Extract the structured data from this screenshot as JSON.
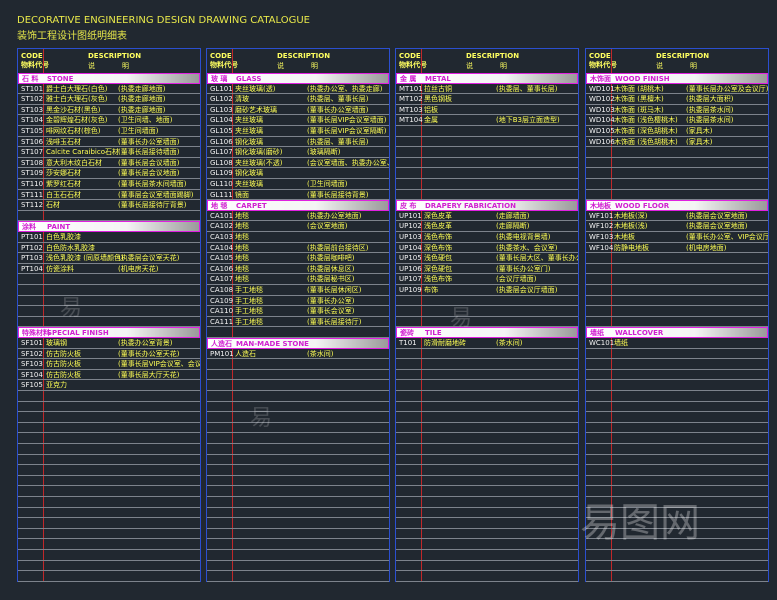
{
  "title_en": "DECORATIVE ENGINEERING DESIGN DRAWING CATALOGUE",
  "title_cn": "装饰工程设计图纸明细表",
  "header": {
    "code": "CODE",
    "code_cn": "物料代号",
    "desc": "DESCRIPTION",
    "desc_cn1": "说",
    "desc_cn2": "明"
  },
  "columns": [
    {
      "rows": [
        {
          "type": "section",
          "cn": "石 料",
          "en": "STONE"
        },
        {
          "code": "ST101",
          "name": "爵士白大理石(白色)",
          "desc": "(执委走廊地面)"
        },
        {
          "code": "ST102",
          "name": "雅士白大理石(灰色)",
          "desc": "(执委走廊地面)"
        },
        {
          "code": "ST103",
          "name": "黑金沙石材(黑色)",
          "desc": "(执委走廊地面)"
        },
        {
          "code": "ST104",
          "name": "金碧辉煌石材(灰色)",
          "desc": "(卫生间墙、地面)"
        },
        {
          "code": "ST105",
          "name": "啡网纹石材(棕色)",
          "desc": "(卫生间墙面)"
        },
        {
          "code": "ST106",
          "name": "浅啡玉石材",
          "desc": "(董事长办公室墙面)"
        },
        {
          "code": "ST107",
          "name": "Calcite Caraibico石材",
          "desc": "(董事长层接待墙面)"
        },
        {
          "code": "ST108",
          "name": "意大利木纹白石材",
          "desc": "(董事长层会议墙面)"
        },
        {
          "code": "ST109",
          "name": "莎安娜石材",
          "desc": "(董事长层会议地面)"
        },
        {
          "code": "ST110",
          "name": "紫罗红石材",
          "desc": "(董事长层茶水间墙面)"
        },
        {
          "code": "ST111",
          "name": "白玉石石材",
          "desc": "(董事层会议室墙面踢脚)"
        },
        {
          "code": "ST112",
          "name": "石材",
          "desc": "(董事长层接待厅背景)"
        },
        {
          "type": "blank"
        },
        {
          "type": "section",
          "cn": "涂料",
          "en": "PAINT"
        },
        {
          "code": "PT101",
          "name": "白色乳胶漆",
          "desc": ""
        },
        {
          "code": "PT102",
          "name": "白色防水乳胶漆",
          "desc": ""
        },
        {
          "code": "PT103",
          "name": "浅色乳胶漆 (同原墙颜色)",
          "desc": "(执委层会议室天花)"
        },
        {
          "code": "PT104",
          "name": "仿瓷涂料",
          "desc": "(机电房天花)"
        },
        {
          "type": "blank"
        },
        {
          "type": "blank"
        },
        {
          "type": "blank"
        },
        {
          "type": "blank"
        },
        {
          "type": "blank"
        },
        {
          "type": "section",
          "cn": "特殊材料",
          "en": "SPECIAL FINISH"
        },
        {
          "code": "SF101",
          "name": "玻璃钢",
          "desc": "(执委办公室背景)"
        },
        {
          "code": "SF102",
          "name": "仿古防火板",
          "desc": "(董事长办公室天花)"
        },
        {
          "code": "SF103",
          "name": "仿古防火板",
          "desc": "(董事长层VIP会议室、会议厅天花)"
        },
        {
          "code": "SF104",
          "name": "仿古防火板",
          "desc": "(董事长层大厅天花)"
        },
        {
          "code": "SF105",
          "name": "亚克力",
          "desc": ""
        }
      ]
    },
    {
      "rows": [
        {
          "type": "section",
          "cn": "玻 璃",
          "en": "GLASS"
        },
        {
          "code": "GL101",
          "name": "夹丝玻璃(透)",
          "desc": "(执委办公室、执委走廊)"
        },
        {
          "code": "GL102",
          "name": "清玻",
          "desc": "(执委层、董事长层)"
        },
        {
          "code": "GL103",
          "name": "磨砂艺术玻璃",
          "desc": "(董事长办公室墙面)"
        },
        {
          "code": "GL104",
          "name": "夹丝玻璃",
          "desc": "(董事长层VIP会议室墙面)"
        },
        {
          "code": "GL105",
          "name": "夹丝玻璃",
          "desc": "(董事长层VIP会议室隔断)"
        },
        {
          "code": "GL106",
          "name": "钢化玻璃",
          "desc": "(执委层、董事长层)"
        },
        {
          "code": "GL107",
          "name": "钢化玻璃(磨砂)",
          "desc": "(玻璃隔断)"
        },
        {
          "code": "GL108",
          "name": "夹丝玻璃(不透)",
          "desc": "(会议室墙面、执委办公室、咖啡吧)"
        },
        {
          "code": "GL109",
          "name": "钢化玻璃",
          "desc": ""
        },
        {
          "code": "GL110",
          "name": "夹丝玻璃",
          "desc": "(卫生间墙面)"
        },
        {
          "code": "GL111",
          "name": "镜面",
          "desc": "(董事长层接待背景)"
        },
        {
          "type": "section",
          "cn": "地 毯",
          "en": "CARPET"
        },
        {
          "code": "CA101",
          "name": "地毯",
          "desc": "(执委办公室地面)"
        },
        {
          "code": "CA102",
          "name": "地毯",
          "desc": "(会议室地面)"
        },
        {
          "code": "CA103",
          "name": "地毯",
          "desc": ""
        },
        {
          "code": "CA104",
          "name": "地毯",
          "desc": "(执委层前台接待区)"
        },
        {
          "code": "CA105",
          "name": "地毯",
          "desc": "(执委层咖啡吧)"
        },
        {
          "code": "CA106",
          "name": "地毯",
          "desc": "(执委层休息区)"
        },
        {
          "code": "CA107",
          "name": "地毯",
          "desc": "(执委层秘书区)"
        },
        {
          "code": "CA108",
          "name": "手工地毯",
          "desc": "(董事长层休闲区)"
        },
        {
          "code": "CA109",
          "name": "手工地毯",
          "desc": "(董事长办公室)"
        },
        {
          "code": "CA110",
          "name": "手工地毯",
          "desc": "(董事长会议室)"
        },
        {
          "code": "CA111",
          "name": "手工地毯",
          "desc": "(董事长层接待厅)"
        },
        {
          "type": "blank"
        },
        {
          "type": "section",
          "cn": "人造石",
          "en": "MAN-MADE STONE"
        },
        {
          "code": "PM101",
          "name": "人造石",
          "desc": "(茶水间)"
        }
      ]
    },
    {
      "rows": [
        {
          "type": "section",
          "cn": "金 属",
          "en": "METAL"
        },
        {
          "code": "MT101",
          "name": "拉丝古铜",
          "desc": "(执委层、董事长层)"
        },
        {
          "code": "MT102",
          "name": "黑色钢板",
          "desc": ""
        },
        {
          "code": "MT103",
          "name": "铝板",
          "desc": ""
        },
        {
          "code": "MT104",
          "name": "金属",
          "desc": "(地下B3层立面造型)"
        },
        {
          "type": "blank"
        },
        {
          "type": "blank"
        },
        {
          "type": "blank"
        },
        {
          "type": "blank"
        },
        {
          "type": "blank"
        },
        {
          "type": "blank"
        },
        {
          "type": "blank"
        },
        {
          "type": "section",
          "cn": "皮 布",
          "en": "DRAPERY FABRICATION"
        },
        {
          "code": "UP101",
          "name": "深色皮革",
          "desc": "(走廊墙面)"
        },
        {
          "code": "UP102",
          "name": "浅色皮革",
          "desc": "(走廊隔断)"
        },
        {
          "code": "UP103",
          "name": "浅色布饰",
          "desc": "(执委电视背景墙)"
        },
        {
          "code": "UP104",
          "name": "深色布饰",
          "desc": "(执委茶水、会议室)"
        },
        {
          "code": "UP105",
          "name": "浅色硬包",
          "desc": "(董事长层大区、董事长办公室、VIP会议室、会议厅墙面)"
        },
        {
          "code": "UP106",
          "name": "深色硬包",
          "desc": "(董事长办公室门)"
        },
        {
          "code": "UP107",
          "name": "浅色布饰",
          "desc": "(会议厅墙面)"
        },
        {
          "code": "UP109",
          "name": "布饰",
          "desc": "(执委层会议厅墙面)"
        },
        {
          "type": "blank"
        },
        {
          "type": "blank"
        },
        {
          "type": "blank"
        },
        {
          "type": "section",
          "cn": "瓷砖",
          "en": "TILE"
        },
        {
          "code": "T101",
          "name": "防滑耐磨地砖",
          "desc": "(茶水间)"
        }
      ]
    },
    {
      "rows": [
        {
          "type": "section",
          "cn": "木饰面",
          "en": "WOOD FINISH"
        },
        {
          "code": "WD101",
          "name": "木饰面 (胡桃木)",
          "desc": "(董事长层办公室及会议厅)"
        },
        {
          "code": "WD102",
          "name": "木饰面 (黑檀木)",
          "desc": "(执委层大面积)"
        },
        {
          "code": "WD103",
          "name": "木饰面 (斑马木)",
          "desc": "(执委层茶水间)"
        },
        {
          "code": "WD104",
          "name": "木饰面 (浅色樱桃木)",
          "desc": "(执委层茶水间)"
        },
        {
          "code": "WD105",
          "name": "木饰面 (深色胡桃木)",
          "desc": "(家具木)"
        },
        {
          "code": "WD106",
          "name": "木饰面 (浅色胡桃木)",
          "desc": "(家具木)"
        },
        {
          "type": "blank"
        },
        {
          "type": "blank"
        },
        {
          "type": "blank"
        },
        {
          "type": "blank"
        },
        {
          "type": "blank"
        },
        {
          "type": "section",
          "cn": "木地板",
          "en": "WOOD FLOOR"
        },
        {
          "code": "WF101",
          "name": "木地板(深)",
          "desc": "(执委层会议室地面)"
        },
        {
          "code": "WF102",
          "name": "木地板(浅)",
          "desc": "(执委层会议室地面)"
        },
        {
          "code": "WF103",
          "name": "木地板",
          "desc": "(董事长办公室、VIP会议厅地面)"
        },
        {
          "code": "WF104",
          "name": "防静电地板",
          "desc": "(机电房地面)"
        },
        {
          "type": "blank"
        },
        {
          "type": "blank"
        },
        {
          "type": "blank"
        },
        {
          "type": "blank"
        },
        {
          "type": "blank"
        },
        {
          "type": "blank"
        },
        {
          "type": "blank"
        },
        {
          "type": "section",
          "cn": "墙纸",
          "en": "WALLCOVER"
        },
        {
          "code": "WC101",
          "name": "墙纸",
          "desc": ""
        }
      ]
    }
  ],
  "colors": {
    "background": "#212830",
    "border": "#2b4fd0",
    "text": "#ffff55",
    "section": "#d020d0",
    "divider": "#c0282a"
  }
}
